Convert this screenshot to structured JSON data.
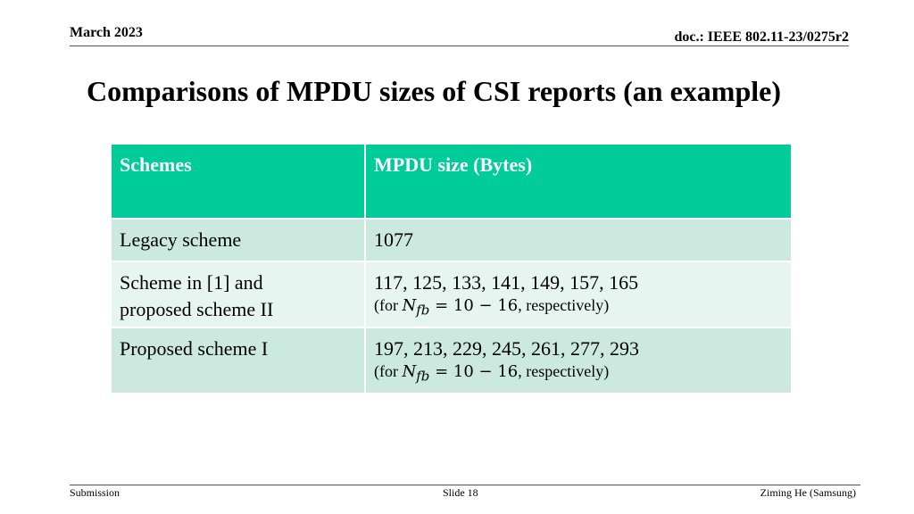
{
  "header": {
    "date": "March 2023",
    "doc_id": "doc.: IEEE 802.11-23/0275r2"
  },
  "title": "Comparisons of MPDU sizes of CSI reports (an example)",
  "table": {
    "columns": [
      "Schemes",
      "MPDU size (Bytes)"
    ],
    "rows": [
      {
        "scheme": "Legacy scheme",
        "size": "1077"
      },
      {
        "scheme_line1": "Scheme in [1] and",
        "scheme_line2": "proposed scheme II",
        "size": "117, 125, 133, 141, 149, 157, 165",
        "note": {
          "prefix": "(for ",
          "var_base": "N",
          "var_sub": "fb",
          "equation": " = 10 − 16",
          "suffix": ", respectively)"
        }
      },
      {
        "scheme": "Proposed scheme I",
        "size": "197, 213, 229, 245, 261, 277, 293",
        "note": {
          "prefix": "(for ",
          "var_base": "N",
          "var_sub": "fb",
          "equation": " = 10 − 16",
          "suffix": ", respectively)"
        }
      }
    ]
  },
  "colors": {
    "header_bg": "#00CC99",
    "row_dark": "#CCE9DF",
    "row_light": "#E7F5F0",
    "header_text": "#FFFFFF"
  },
  "footer": {
    "left": "Submission",
    "center": "Slide 18",
    "right": "Ziming He (Samsung)"
  }
}
